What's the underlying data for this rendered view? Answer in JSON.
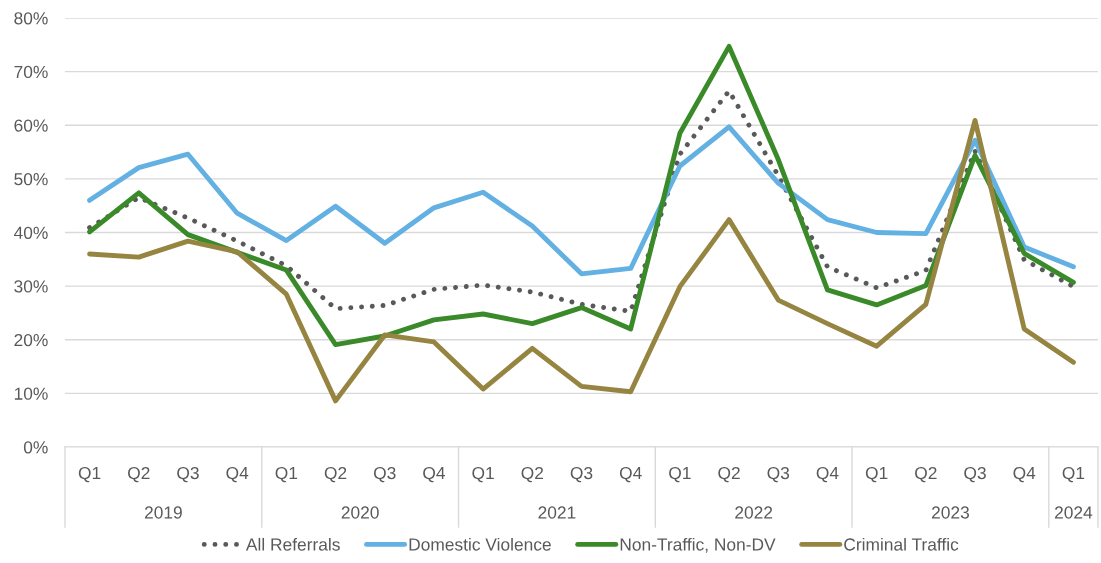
{
  "chart_data": {
    "type": "line",
    "categories": [
      "Q1",
      "Q2",
      "Q3",
      "Q4",
      "Q1",
      "Q2",
      "Q3",
      "Q4",
      "Q1",
      "Q2",
      "Q3",
      "Q4",
      "Q1",
      "Q2",
      "Q3",
      "Q4",
      "Q1",
      "Q2",
      "Q3",
      "Q4",
      "Q1"
    ],
    "annotations": [
      "2019",
      "2020",
      "2021",
      "2022",
      "2023",
      "2024"
    ],
    "series": [
      {
        "name": "All Referrals",
        "color": "#595959",
        "line_style": "dotted",
        "values": [
          40.9,
          46.5,
          42.7,
          38.4,
          33.8,
          25.8,
          26.4,
          29.4,
          30.2,
          28.9,
          26.6,
          25.3,
          54.6,
          66.4,
          50.6,
          33.6,
          29.7,
          32.9,
          55.2,
          34.9,
          29.9
        ]
      },
      {
        "name": "Domestic Violence",
        "color": "#63b0e3",
        "line_style": "solid",
        "values": [
          46.0,
          52.1,
          54.6,
          43.6,
          38.5,
          44.9,
          38.0,
          44.6,
          47.5,
          41.2,
          32.3,
          33.3,
          52.4,
          59.7,
          49.2,
          42.4,
          40.0,
          39.8,
          57.2,
          37.3,
          33.6
        ]
      },
      {
        "name": "Non-Traffic, Non-DV",
        "color": "#3a8a2a",
        "line_style": "solid",
        "values": [
          40.1,
          47.4,
          39.6,
          36.3,
          33.0,
          19.1,
          20.7,
          23.7,
          24.8,
          23.0,
          26.0,
          22.0,
          58.5,
          74.7,
          53.6,
          29.3,
          26.5,
          30.1,
          54.4,
          36.1,
          30.7
        ]
      },
      {
        "name": "Criminal Traffic",
        "color": "#968540",
        "line_style": "solid",
        "values": [
          36.0,
          35.4,
          38.4,
          36.4,
          28.5,
          8.6,
          20.9,
          19.6,
          10.8,
          18.4,
          11.3,
          10.3,
          29.9,
          42.4,
          27.4,
          23.0,
          18.8,
          26.6,
          60.9,
          22.0,
          15.8
        ]
      }
    ],
    "ylim": [
      0,
      80
    ],
    "yticks": [
      {
        "value": 0,
        "label": "0%"
      },
      {
        "value": 10,
        "label": "10%"
      },
      {
        "value": 20,
        "label": "20%"
      },
      {
        "value": 30,
        "label": "30%"
      },
      {
        "value": 40,
        "label": "40%"
      },
      {
        "value": 50,
        "label": "50%"
      },
      {
        "value": 60,
        "label": "60%"
      },
      {
        "value": 70,
        "label": "70%"
      },
      {
        "value": 80,
        "label": "80%"
      }
    ],
    "grid": "y",
    "legend": "bottom"
  }
}
